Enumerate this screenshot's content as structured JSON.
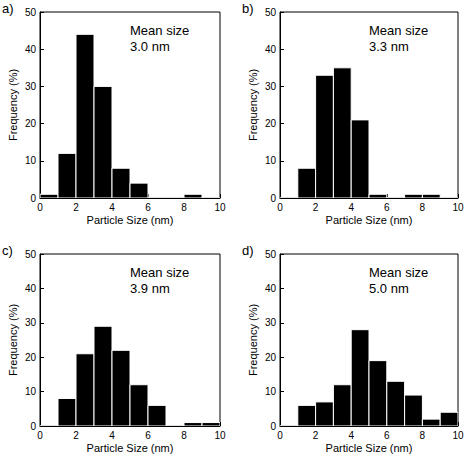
{
  "chart_data": [
    {
      "type": "histogram",
      "title": "a)",
      "annotation": [
        "Mean size",
        "3.0 nm"
      ],
      "xlabel": "Particle Size (nm)",
      "ylabel": "Frequency (%)",
      "bins": [
        0,
        1,
        2,
        3,
        4,
        5,
        6,
        7,
        8,
        9,
        10
      ],
      "values": [
        1,
        12,
        44,
        30,
        8,
        4,
        0,
        0,
        1,
        0
      ],
      "color": "#000000",
      "xlim": [
        0,
        10
      ],
      "xticks": [
        0,
        2,
        4,
        6,
        8,
        10
      ],
      "ylim": [
        0,
        50
      ],
      "yticks": [
        0,
        10,
        20,
        30,
        40,
        50
      ],
      "grid": false
    },
    {
      "type": "histogram",
      "title": "b)",
      "annotation": [
        "Mean size",
        "3.3 nm"
      ],
      "xlabel": "Particle Size (nm)",
      "ylabel": "Frequency (%)",
      "bins": [
        0,
        1,
        2,
        3,
        4,
        5,
        6,
        7,
        8,
        9,
        10
      ],
      "values": [
        0,
        8,
        33,
        35,
        21,
        1,
        0,
        1,
        1,
        0
      ],
      "color": "#000000",
      "xlim": [
        0,
        10
      ],
      "xticks": [
        0,
        2,
        4,
        6,
        8,
        10
      ],
      "ylim": [
        0,
        50
      ],
      "yticks": [
        0,
        10,
        20,
        30,
        40,
        50
      ],
      "grid": false
    },
    {
      "type": "histogram",
      "title": "c)",
      "annotation": [
        "Mean size",
        "3.9 nm"
      ],
      "xlabel": "Particle Size (nm)",
      "ylabel": "Frequency (%)",
      "bins": [
        0,
        1,
        2,
        3,
        4,
        5,
        6,
        7,
        8,
        9,
        10
      ],
      "values": [
        0,
        8,
        21,
        29,
        22,
        12,
        6,
        0,
        1,
        1
      ],
      "color": "#000000",
      "xlim": [
        0,
        10
      ],
      "xticks": [
        0,
        2,
        4,
        6,
        8,
        10
      ],
      "ylim": [
        0,
        50
      ],
      "yticks": [
        0,
        10,
        20,
        30,
        40,
        50
      ],
      "grid": false
    },
    {
      "type": "histogram",
      "title": "d)",
      "annotation": [
        "Mean size",
        "5.0 nm"
      ],
      "xlabel": "Particle Size (nm)",
      "ylabel": "Frequency (%)",
      "bins": [
        0,
        1,
        2,
        3,
        4,
        5,
        6,
        7,
        8,
        9,
        10
      ],
      "values": [
        0,
        6,
        7,
        12,
        28,
        19,
        13,
        9,
        2,
        4
      ],
      "color": "#000000",
      "xlim": [
        0,
        10
      ],
      "xticks": [
        0,
        2,
        4,
        6,
        8,
        10
      ],
      "ylim": [
        0,
        50
      ],
      "yticks": [
        0,
        10,
        20,
        30,
        40,
        50
      ],
      "grid": false
    }
  ]
}
